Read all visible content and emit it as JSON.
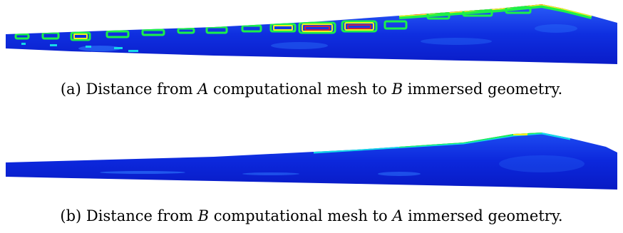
{
  "figures": [
    {
      "label": "(a)",
      "caption_parts": [
        "Distance from ",
        "A",
        " computational mesh to ",
        "B",
        " immersed geometry."
      ]
    },
    {
      "label": "(b)",
      "caption_parts": [
        "Distance from ",
        "B",
        " computational mesh to ",
        "A",
        " immersed geometry."
      ]
    }
  ],
  "colors": {
    "deep_blue": "#0a1fd6",
    "mid_blue": "#1846f0",
    "light_blue": "#2f7bff",
    "cyan": "#15d8e8",
    "green": "#1cf04a",
    "yellow": "#f0f020",
    "red": "#ff1a10"
  }
}
